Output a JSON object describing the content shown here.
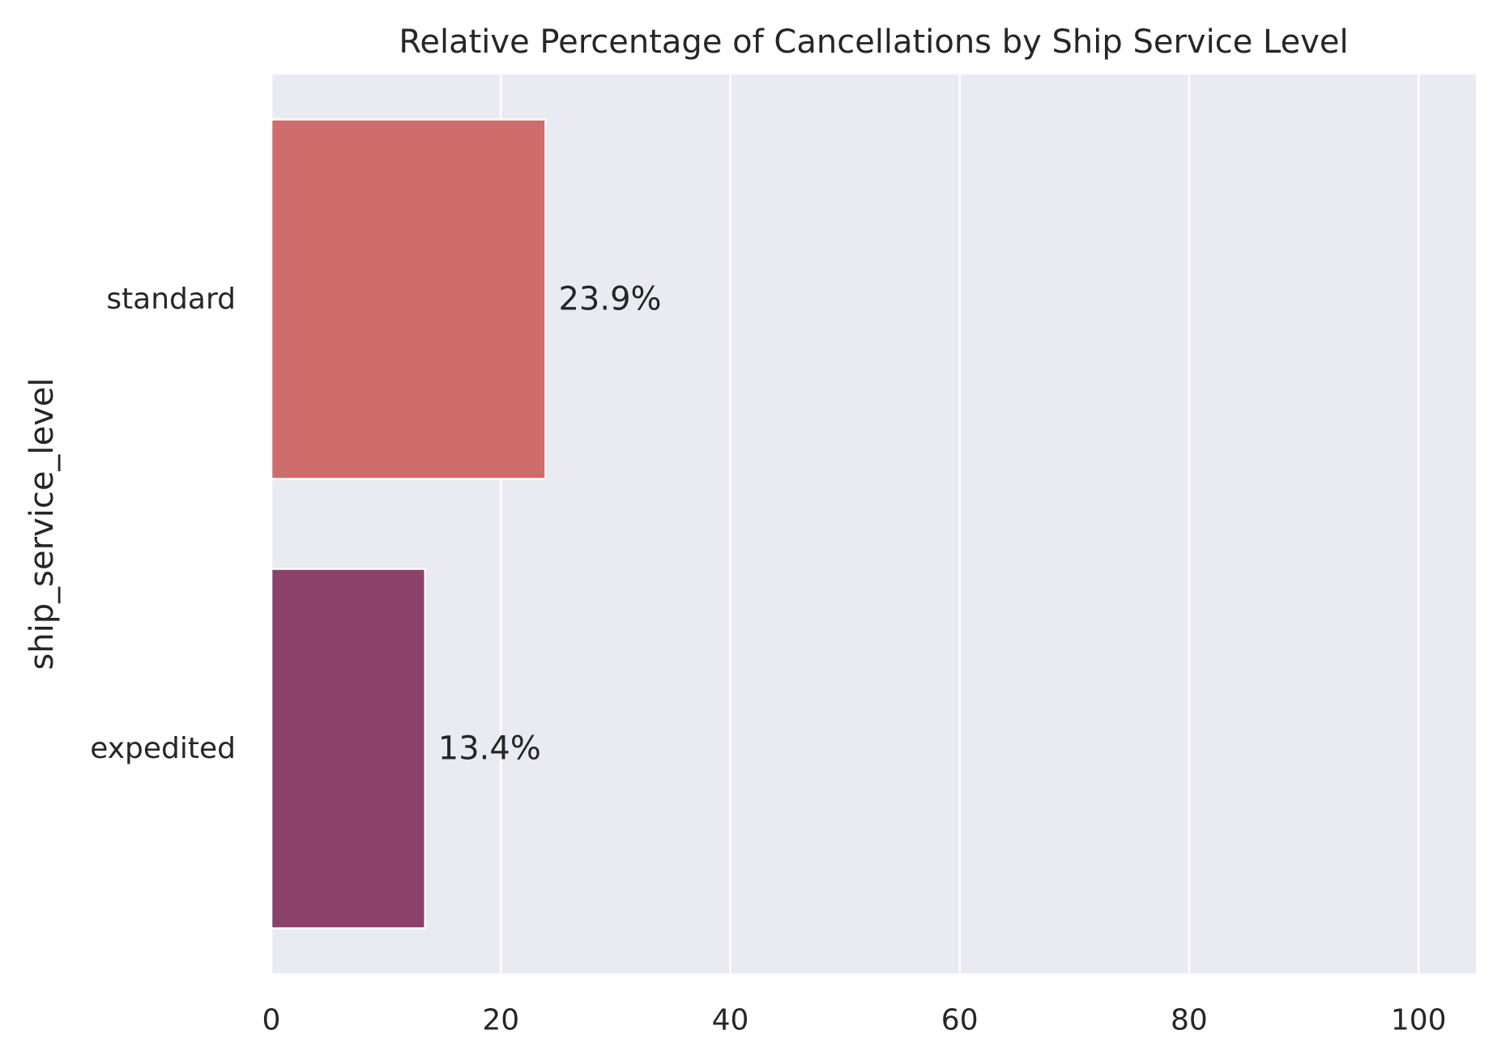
{
  "chart_data": {
    "type": "bar",
    "orientation": "horizontal",
    "title": "Relative Percentage of Cancellations by Ship Service Level",
    "xlabel": "",
    "ylabel": "ship_service_level",
    "categories": [
      "standard",
      "expedited"
    ],
    "values": [
      23.9,
      13.4
    ],
    "value_labels": [
      "23.9%",
      "13.4%"
    ],
    "bar_colors": [
      "#cf6c6c",
      "#8b416a"
    ],
    "xlim": [
      0,
      105
    ],
    "xticks": [
      0,
      20,
      40,
      60,
      80,
      100
    ],
    "xtick_labels": [
      "0",
      "20",
      "40",
      "60",
      "80",
      "100"
    ],
    "grid": true,
    "grid_axis": "x",
    "background_color": "#eaeaf2",
    "grid_color": "#ffffff"
  }
}
